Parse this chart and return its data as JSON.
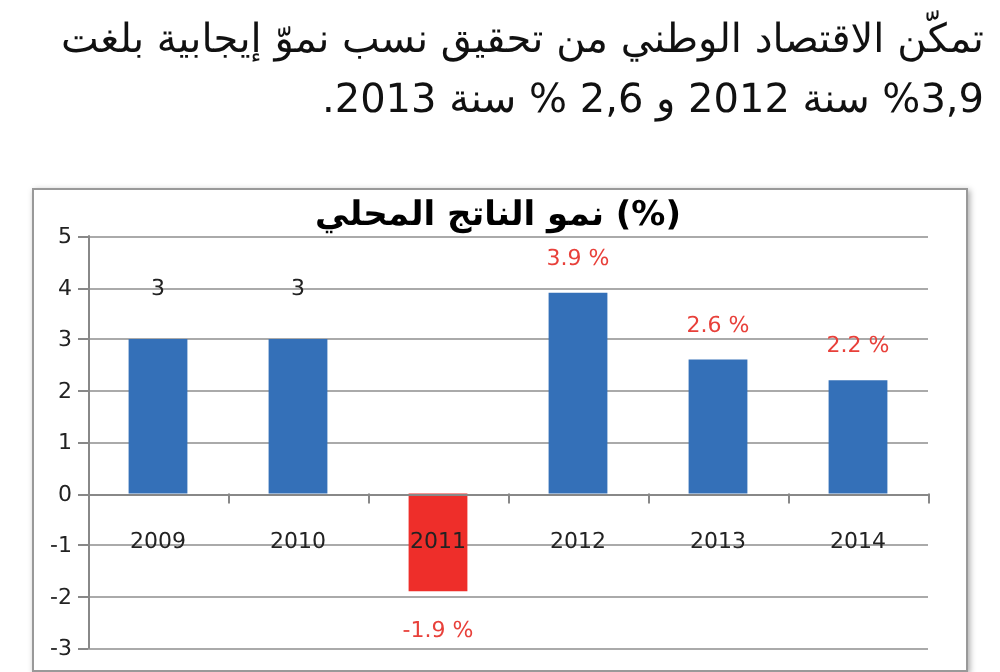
{
  "chart_data": {
    "type": "bar",
    "title": "نمو الناتج المحلي (%)",
    "annotations": [
      "تمكّن الاقتصاد الوطني من تحقيق نسب نموّ إيجابية بلغت 3,9% سنة 2012 و 2,6 % سنة 2013."
    ],
    "categories": [
      "2009",
      "2010",
      "2011",
      "2012",
      "2013",
      "2014"
    ],
    "values": [
      3,
      3,
      -1.9,
      3.9,
      2.6,
      2.2
    ],
    "colors": [
      "#3470b8",
      "#3470b8",
      "#ee2e2a",
      "#3470b8",
      "#3470b8",
      "#3470b8"
    ],
    "value_labels": [
      "3",
      "3",
      "-1.9 %",
      "3.9 %",
      "2.6 %",
      "2.2 %"
    ],
    "ylim": [
      -3,
      5
    ],
    "yticks": [
      -3,
      -2,
      -1,
      0,
      1,
      2,
      3,
      4,
      5
    ],
    "grid": "y"
  }
}
